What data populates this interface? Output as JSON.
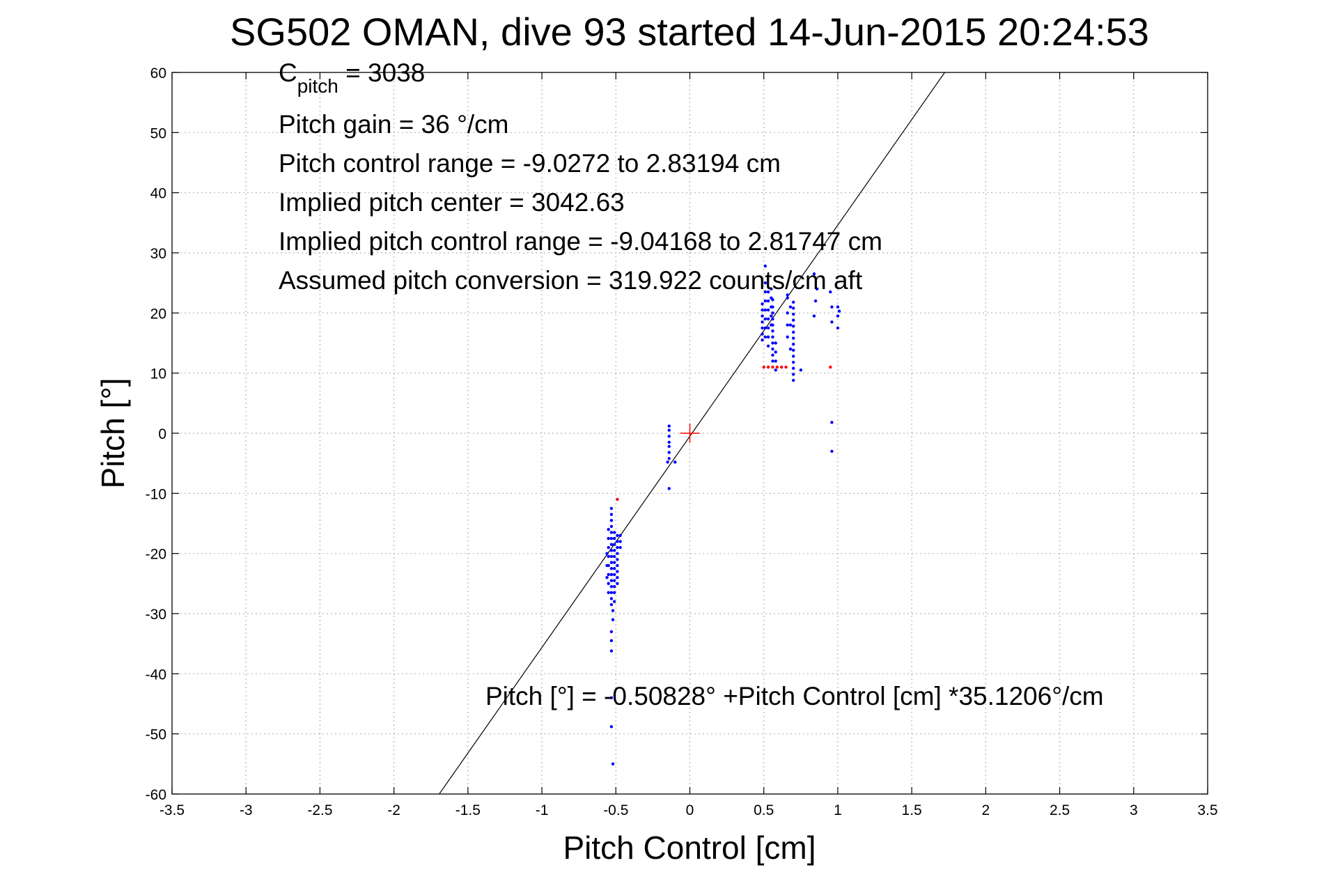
{
  "chart_data": {
    "type": "scatter",
    "title": "SG502 OMAN, dive 93 started 14-Jun-2015 20:24:53",
    "xlabel": "Pitch Control [cm]",
    "ylabel": "Pitch [°]",
    "xlim": [
      -3.5,
      3.5
    ],
    "ylim": [
      -60,
      60
    ],
    "xticks": [
      -3.5,
      -3,
      -2.5,
      -2,
      -1.5,
      -1,
      -0.5,
      0,
      0.5,
      1,
      1.5,
      2,
      2.5,
      3,
      3.5
    ],
    "xtick_labels": [
      "-3.5",
      "-3",
      "-2.5",
      "-2",
      "-1.5",
      "-1",
      "-0.5",
      "0",
      "0.5",
      "1",
      "1.5",
      "2",
      "2.5",
      "3",
      "3.5"
    ],
    "yticks": [
      -60,
      -50,
      -40,
      -30,
      -20,
      -10,
      0,
      10,
      20,
      30,
      40,
      50,
      60
    ],
    "ytick_labels": [
      "-60",
      "-50",
      "-40",
      "-30",
      "-20",
      "-10",
      "0",
      "10",
      "20",
      "30",
      "40",
      "50",
      "60"
    ],
    "grid": true,
    "annotations": {
      "c_pitch_main": "C",
      "c_pitch_sub": "pitch",
      "c_pitch_value": " = 3038",
      "gain": "Pitch gain = 36 °/cm",
      "range": "Pitch control range = -9.0272 to 2.83194 cm",
      "center": "Implied pitch center = 3042.63",
      "implied_range": "Implied pitch control range = -9.04168 to 2.81747 cm",
      "conversion": "Assumed pitch conversion = 319.922 counts/cm aft",
      "fit": "Pitch [°] = -0.50828° +Pitch Control [cm] *35.1206°/cm"
    },
    "fit_line": {
      "intercept": -0.50828,
      "slope": 35.1206
    },
    "center_marker": {
      "x": 0,
      "y": 0,
      "color": "#ff0000"
    },
    "series": [
      {
        "color": "#0000ff",
        "points": [
          [
            -0.53,
            -12.5
          ],
          [
            -0.53,
            -13.5
          ],
          [
            -0.53,
            -14.5
          ],
          [
            -0.53,
            -15.5
          ],
          [
            -0.53,
            -16.5
          ],
          [
            -0.53,
            -17.5
          ],
          [
            -0.53,
            -18.5
          ],
          [
            -0.53,
            -19.5
          ],
          [
            -0.53,
            -20.5
          ],
          [
            -0.53,
            -21.5
          ],
          [
            -0.53,
            -22.5
          ],
          [
            -0.53,
            -23.5
          ],
          [
            -0.53,
            -24.5
          ],
          [
            -0.53,
            -25.5
          ],
          [
            -0.53,
            -26.5
          ],
          [
            -0.53,
            -27.5
          ],
          [
            -0.53,
            -28.5
          ],
          [
            -0.55,
            -16
          ],
          [
            -0.55,
            -17.5
          ],
          [
            -0.55,
            -19
          ],
          [
            -0.55,
            -20.5
          ],
          [
            -0.55,
            -22
          ],
          [
            -0.55,
            -23.5
          ],
          [
            -0.55,
            -25
          ],
          [
            -0.55,
            -26.5
          ],
          [
            -0.56,
            -20
          ],
          [
            -0.56,
            -22
          ],
          [
            -0.56,
            -24
          ],
          [
            -0.51,
            -16.5
          ],
          [
            -0.51,
            -17.5
          ],
          [
            -0.51,
            -18.5
          ],
          [
            -0.51,
            -19.5
          ],
          [
            -0.51,
            -20.5
          ],
          [
            -0.51,
            -21.5
          ],
          [
            -0.51,
            -22.5
          ],
          [
            -0.51,
            -23.5
          ],
          [
            -0.51,
            -24.5
          ],
          [
            -0.51,
            -25.5
          ],
          [
            -0.51,
            -26.5
          ],
          [
            -0.51,
            -28
          ],
          [
            -0.49,
            -17
          ],
          [
            -0.49,
            -18
          ],
          [
            -0.49,
            -19
          ],
          [
            -0.49,
            -20
          ],
          [
            -0.49,
            -21
          ],
          [
            -0.49,
            -22
          ],
          [
            -0.49,
            -23
          ],
          [
            -0.49,
            -24
          ],
          [
            -0.49,
            -25
          ],
          [
            -0.47,
            -17
          ],
          [
            -0.47,
            -18
          ],
          [
            -0.47,
            -19
          ],
          [
            -0.52,
            -29.5
          ],
          [
            -0.52,
            -31
          ],
          [
            -0.53,
            -33
          ],
          [
            -0.53,
            -34.5
          ],
          [
            -0.53,
            -36.2
          ],
          [
            -0.53,
            -44
          ],
          [
            -0.53,
            -48.8
          ],
          [
            -0.52,
            -55
          ],
          [
            -0.14,
            1.2
          ],
          [
            -0.14,
            0.5
          ],
          [
            -0.14,
            -0.5
          ],
          [
            -0.14,
            -1.5
          ],
          [
            -0.14,
            -2.2
          ],
          [
            -0.14,
            -3.2
          ],
          [
            -0.14,
            -4.2
          ],
          [
            -0.15,
            -4.8
          ],
          [
            -0.1,
            -4.8
          ],
          [
            -0.14,
            -9.2
          ],
          [
            0.49,
            15.5
          ],
          [
            0.49,
            16.5
          ],
          [
            0.49,
            17.5
          ],
          [
            0.49,
            18.5
          ],
          [
            0.49,
            19.5
          ],
          [
            0.49,
            20.5
          ],
          [
            0.49,
            21.5
          ],
          [
            0.51,
            16
          ],
          [
            0.51,
            17.5
          ],
          [
            0.51,
            19
          ],
          [
            0.51,
            20.5
          ],
          [
            0.51,
            22
          ],
          [
            0.51,
            23.5
          ],
          [
            0.51,
            25
          ],
          [
            0.51,
            27.8
          ],
          [
            0.53,
            14.5
          ],
          [
            0.53,
            16
          ],
          [
            0.53,
            17.5
          ],
          [
            0.53,
            19
          ],
          [
            0.53,
            20.5
          ],
          [
            0.53,
            22
          ],
          [
            0.53,
            23.5
          ],
          [
            0.55,
            18
          ],
          [
            0.55,
            19.5
          ],
          [
            0.55,
            21
          ],
          [
            0.55,
            22.5
          ],
          [
            0.55,
            24
          ],
          [
            0.56,
            12
          ],
          [
            0.56,
            13
          ],
          [
            0.56,
            14
          ],
          [
            0.56,
            15
          ],
          [
            0.56,
            16
          ],
          [
            0.56,
            17
          ],
          [
            0.56,
            18
          ],
          [
            0.56,
            19
          ],
          [
            0.56,
            20
          ],
          [
            0.56,
            21
          ],
          [
            0.56,
            22.2
          ],
          [
            0.58,
            10.5
          ],
          [
            0.58,
            12
          ],
          [
            0.58,
            13.5
          ],
          [
            0.58,
            15
          ],
          [
            0.66,
            16
          ],
          [
            0.66,
            18
          ],
          [
            0.66,
            20
          ],
          [
            0.66,
            22.5
          ],
          [
            0.66,
            23
          ],
          [
            0.7,
            8.8
          ],
          [
            0.7,
            9.8
          ],
          [
            0.7,
            10.8
          ],
          [
            0.7,
            11.8
          ],
          [
            0.7,
            12.8
          ],
          [
            0.7,
            13.8
          ],
          [
            0.7,
            14.8
          ],
          [
            0.7,
            15.8
          ],
          [
            0.7,
            16.8
          ],
          [
            0.7,
            17.8
          ],
          [
            0.7,
            18.8
          ],
          [
            0.7,
            19.8
          ],
          [
            0.7,
            20.8
          ],
          [
            0.7,
            21.8
          ],
          [
            0.68,
            14
          ],
          [
            0.68,
            18
          ],
          [
            0.68,
            21
          ],
          [
            0.75,
            10.5
          ],
          [
            0.84,
            19.5
          ],
          [
            0.85,
            22
          ],
          [
            0.86,
            24
          ],
          [
            0.84,
            26.5
          ],
          [
            0.95,
            23.5
          ],
          [
            0.96,
            21
          ],
          [
            0.96,
            18.5
          ],
          [
            0.96,
            1.8
          ],
          [
            0.96,
            -3
          ],
          [
            1,
            21
          ],
          [
            1,
            19.5
          ],
          [
            1,
            17.5
          ],
          [
            1.01,
            20.3
          ]
        ]
      },
      {
        "color": "#ff0000",
        "points": [
          [
            -0.49,
            -11
          ],
          [
            0.5,
            11
          ],
          [
            0.53,
            11
          ],
          [
            0.56,
            11
          ],
          [
            0.59,
            11
          ],
          [
            0.62,
            11
          ],
          [
            0.65,
            11
          ],
          [
            0.95,
            11
          ]
        ]
      }
    ]
  }
}
